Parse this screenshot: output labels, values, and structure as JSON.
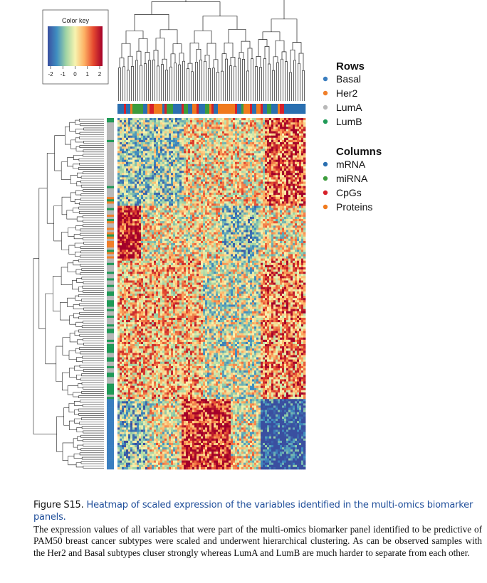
{
  "figure": {
    "color_key": {
      "title": "Color key",
      "ticks": [
        "-2",
        "-1",
        "0",
        "1",
        "2"
      ],
      "colors": [
        "#3a4fa0",
        "#3f8fc1",
        "#9fd3a4",
        "#f7f4b0",
        "#fdb164",
        "#e5492f",
        "#a3002a"
      ]
    },
    "legend": {
      "rows_title": "Rows",
      "rows": [
        {
          "label": "Basal",
          "color": "#3a7ebf"
        },
        {
          "label": "Her2",
          "color": "#f07f2a"
        },
        {
          "label": "LumA",
          "color": "#b8b8b8"
        },
        {
          "label": "LumB",
          "color": "#1f9a57"
        }
      ],
      "columns_title": "Columns",
      "columns": [
        {
          "label": "mRNA",
          "color": "#2a6fb0"
        },
        {
          "label": "miRNA",
          "color": "#3c9c3c"
        },
        {
          "label": "CpGs",
          "color": "#d6202a"
        },
        {
          "label": "Proteins",
          "color": "#f07a1e"
        }
      ]
    }
  },
  "chart_data": {
    "type": "heatmap",
    "title": "Heatmap of scaled expression of the variables identified in the multi-omics biomarker panels",
    "value_range": [
      -2,
      2
    ],
    "row_groups": [
      "Basal",
      "Her2",
      "LumA",
      "LumB"
    ],
    "column_groups": [
      "mRNA",
      "miRNA",
      "CpGs",
      "Proteins"
    ],
    "row_dendrogram": true,
    "column_dendrogram": true
  },
  "caption": {
    "lead": "Figure S15.",
    "title": "Heatmap of scaled expression of the variables identified in the multi-omics biomarker panels.",
    "body": "The expression values of all variables that were part of the multi-omics biomarker panel identified to be predictive of PAM50 breast cancer subtypes were scaled and underwent hierarchical clustering. As can be observed samples with the Her2 and Basal subtypes cluser strongly whereas LumA and LumB are much harder to separate from each other."
  }
}
